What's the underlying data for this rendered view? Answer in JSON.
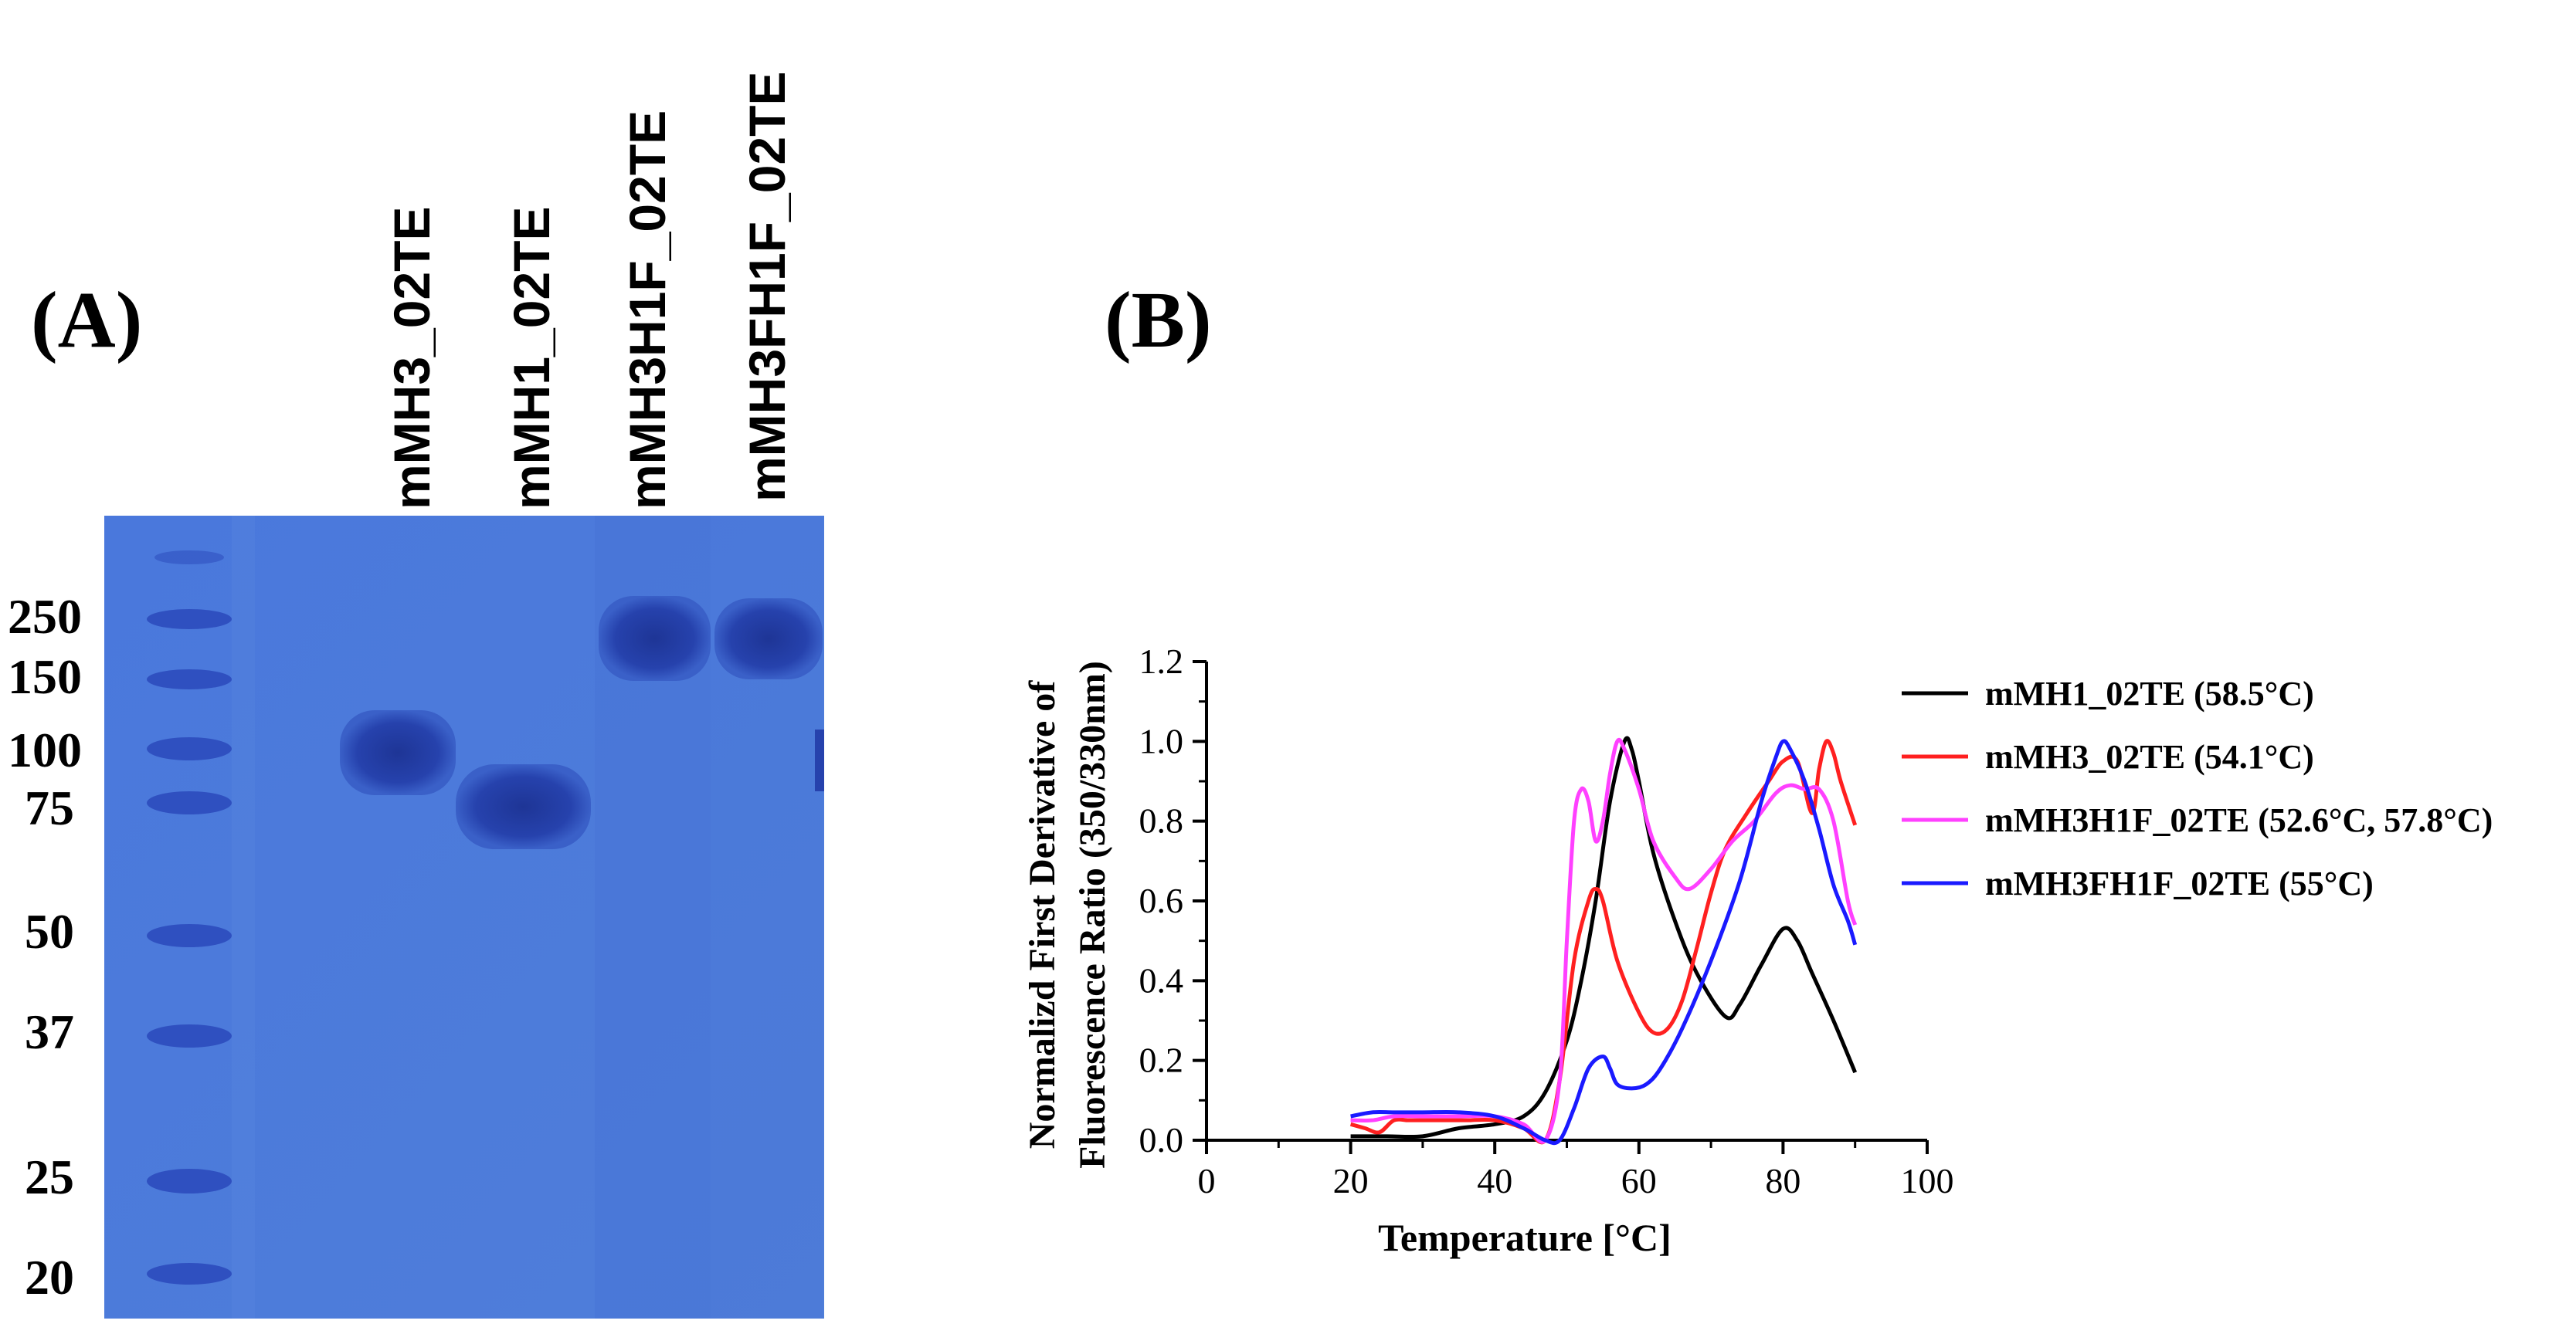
{
  "panels": {
    "a_label": "(A)",
    "b_label": "(B)"
  },
  "gel": {
    "lane_labels": [
      "mMH3_02TE",
      "mMH1_02TE",
      "mMH3H1F_02TE",
      "mMH3FH1F_02TE"
    ],
    "marker_labels": [
      "250",
      "150",
      "100",
      "75",
      "50",
      "37",
      "25",
      "20"
    ],
    "colors": {
      "gel": "#4a78d8",
      "band": "#243fa8",
      "marker": "#2f4fbf"
    }
  },
  "chart_data": {
    "type": "line",
    "title": "",
    "xlabel": "Temperature [°C]",
    "ylabel_line1": "Normalizd First Derivative of",
    "ylabel_line2": "Fluorescence Ratio (350/330nm)",
    "xlim": [
      0,
      100
    ],
    "ylim": [
      0,
      1.2
    ],
    "xticks": [
      "0",
      "20",
      "40",
      "60",
      "80",
      "100"
    ],
    "yticks": [
      "0.0",
      "0.2",
      "0.4",
      "0.6",
      "0.8",
      "1.0",
      "1.2"
    ],
    "legend_position": "right",
    "series": [
      {
        "name": "mMH1_02TE (58.5°C)",
        "color": "#000000",
        "x": [
          20,
          25,
          30,
          35,
          40,
          44,
          47,
          50,
          52,
          54,
          56,
          58,
          59,
          60,
          62,
          65,
          68,
          72,
          74,
          77,
          80,
          82,
          84,
          87,
          90
        ],
        "y": [
          0.01,
          0.01,
          0.01,
          0.03,
          0.04,
          0.06,
          0.12,
          0.25,
          0.4,
          0.6,
          0.85,
          1.0,
          0.98,
          0.9,
          0.72,
          0.55,
          0.42,
          0.31,
          0.34,
          0.44,
          0.53,
          0.5,
          0.42,
          0.3,
          0.17
        ]
      },
      {
        "name": "mMH3_02TE (54.1°C)",
        "color": "#ff2020",
        "x": [
          20,
          22,
          24,
          26,
          28,
          30,
          33,
          36,
          40,
          44,
          47,
          49,
          51,
          53,
          54,
          55,
          57,
          60,
          62,
          64,
          66,
          68,
          70,
          72,
          75,
          78,
          80,
          82,
          84,
          85,
          86,
          87,
          88,
          90
        ],
        "y": [
          0.04,
          0.03,
          0.02,
          0.05,
          0.05,
          0.05,
          0.05,
          0.05,
          0.05,
          0.03,
          0.0,
          0.15,
          0.45,
          0.6,
          0.63,
          0.6,
          0.45,
          0.32,
          0.27,
          0.28,
          0.35,
          0.48,
          0.62,
          0.73,
          0.82,
          0.9,
          0.95,
          0.95,
          0.82,
          0.93,
          1.0,
          0.97,
          0.9,
          0.79
        ]
      },
      {
        "name": "mMH3H1F_02TE (52.6°C, 57.8°C)",
        "color": "#ff40ff",
        "x": [
          20,
          23,
          26,
          30,
          35,
          40,
          44,
          47,
          49,
          50,
          51,
          52,
          53,
          54,
          55,
          56,
          57,
          58,
          60,
          62,
          65,
          67,
          70,
          73,
          76,
          79,
          81,
          83,
          85,
          87,
          89,
          90
        ],
        "y": [
          0.05,
          0.05,
          0.06,
          0.06,
          0.06,
          0.06,
          0.04,
          0.0,
          0.15,
          0.5,
          0.8,
          0.88,
          0.85,
          0.75,
          0.8,
          0.92,
          1.0,
          0.98,
          0.88,
          0.75,
          0.66,
          0.63,
          0.68,
          0.75,
          0.8,
          0.87,
          0.89,
          0.88,
          0.88,
          0.8,
          0.6,
          0.54
        ]
      },
      {
        "name": "mMH3FH1F_02TE (55°C)",
        "color": "#1a1aff",
        "x": [
          20,
          23,
          26,
          30,
          35,
          40,
          44,
          47,
          49,
          51,
          53,
          55,
          56,
          57,
          59,
          61,
          63,
          66,
          70,
          74,
          77,
          79,
          80,
          81,
          83,
          85,
          87,
          89,
          90
        ],
        "y": [
          0.06,
          0.07,
          0.07,
          0.07,
          0.07,
          0.06,
          0.03,
          0.0,
          0.0,
          0.08,
          0.18,
          0.21,
          0.18,
          0.14,
          0.13,
          0.14,
          0.18,
          0.28,
          0.45,
          0.65,
          0.85,
          0.96,
          1.0,
          0.98,
          0.9,
          0.78,
          0.64,
          0.55,
          0.49
        ]
      }
    ]
  }
}
